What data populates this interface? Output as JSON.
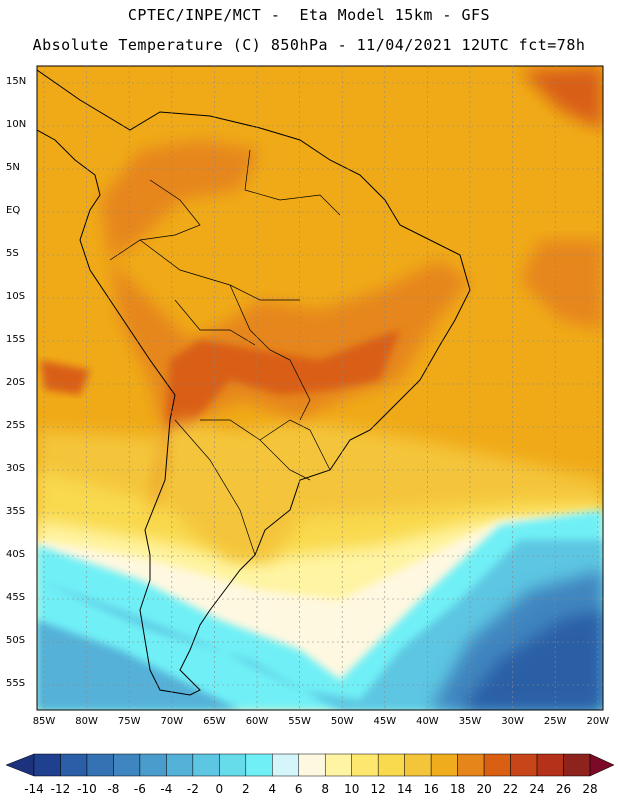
{
  "title_line1": "CPTEC/INPE/MCT -  Eta Model 15km - GFS",
  "title_line2": "Absolute Temperature (C) 850hPa - 11/04/2021 12UTC fct=78h",
  "lat_labels": [
    "15N",
    "10N",
    "5N",
    "EQ",
    "5S",
    "10S",
    "15S",
    "20S",
    "25S",
    "30S",
    "35S",
    "40S",
    "45S",
    "50S",
    "55S"
  ],
  "lon_labels": [
    "85W",
    "80W",
    "75W",
    "70W",
    "65W",
    "60W",
    "55W",
    "50W",
    "45W",
    "40W",
    "35W",
    "30W",
    "25W",
    "20W"
  ],
  "colorbar": {
    "labels": [
      "-14",
      "-12",
      "-10",
      "-8",
      "-6",
      "-4",
      "-2",
      "0",
      "2",
      "4",
      "6",
      "8",
      "10",
      "12",
      "14",
      "16",
      "18",
      "20",
      "22",
      "24",
      "26",
      "28"
    ],
    "colors": [
      "#1f3f8f",
      "#2a5ea6",
      "#3572b3",
      "#3f85bf",
      "#4a9ccc",
      "#54b1d8",
      "#5dc6e2",
      "#66dcea",
      "#70f0f6",
      "#d4f6fb",
      "#fff8e0",
      "#fff4a3",
      "#fde76e",
      "#f9d94e",
      "#f4c53a",
      "#efac1c",
      "#e6861a",
      "#d95f13",
      "#c8451a",
      "#b4311a",
      "#8e221c"
    ],
    "under_color": "#1c327c",
    "over_color": "#7a0a25"
  }
}
